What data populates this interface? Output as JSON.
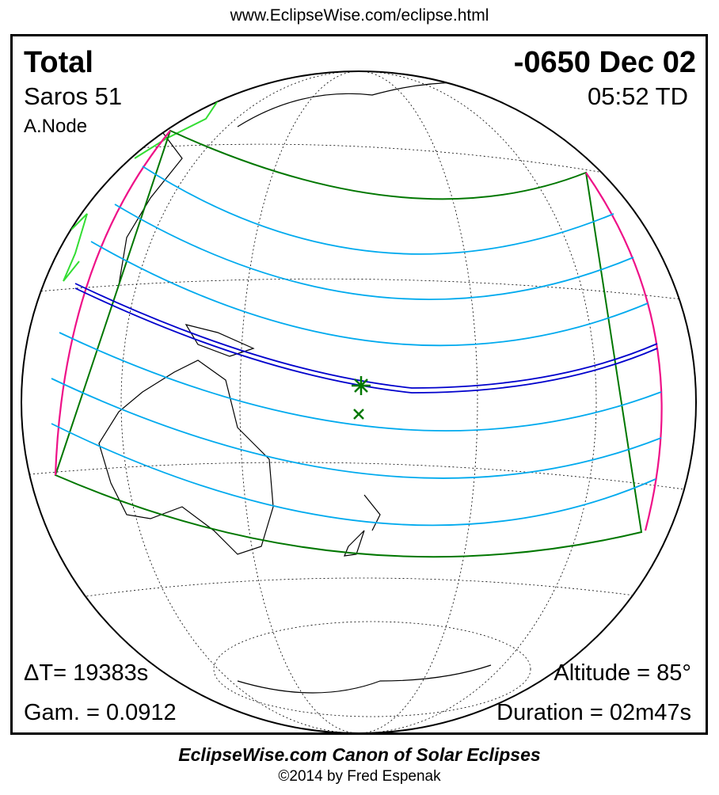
{
  "header": {
    "url": "www.EclipseWise.com/eclipse.html"
  },
  "eclipse": {
    "type": "Total",
    "date": "-0650 Dec 02",
    "saros": "Saros  51",
    "time": "05:52 TD",
    "node": "A.Node",
    "delta_t": "ΔT=  19383s",
    "gamma": "Gam. = 0.0912",
    "altitude": "Altitude = 85°",
    "duration": "Duration = 02m47s"
  },
  "footer": {
    "canon": "EclipseWise.com Canon of Solar Eclipses",
    "copyright": "©2014 by Fred Espenak"
  },
  "colors": {
    "central_path": "#0000cc",
    "penumbral_limits": "#007700",
    "rise_set": "#ee1188",
    "time_lines": "#00aaee",
    "max_eclipse": "#007700"
  }
}
